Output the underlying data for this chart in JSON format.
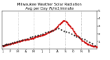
{
  "title": "Milwaukee Weather Solar Radiation\nAvg per Day W/m2/minute",
  "title_fontsize": 3.8,
  "background_color": "#ffffff",
  "plot_bg_color": "#ffffff",
  "x_min": 0,
  "x_max": 365,
  "y_min": 0,
  "y_max": 500,
  "yticks": [
    100,
    200,
    300,
    400,
    500
  ],
  "ytick_labels": [
    "1",
    "2",
    "3",
    "4",
    "5"
  ],
  "red_x": [
    1,
    3,
    5,
    8,
    10,
    12,
    15,
    17,
    20,
    22,
    25,
    28,
    30,
    33,
    36,
    38,
    41,
    44,
    47,
    50,
    53,
    56,
    59,
    62,
    65,
    68,
    71,
    74,
    77,
    80,
    83,
    86,
    89,
    92,
    95,
    98,
    101,
    104,
    107,
    110,
    113,
    116,
    119,
    122,
    125,
    128,
    131,
    134,
    137,
    140,
    143,
    146,
    149,
    152,
    155,
    158,
    161,
    164,
    167,
    170,
    173,
    176,
    179,
    182,
    185,
    188,
    191,
    194,
    197,
    200,
    203,
    206,
    209,
    212,
    215,
    218,
    221,
    224,
    227,
    230,
    233,
    236,
    239,
    242,
    245,
    248,
    251,
    254,
    257,
    260,
    263,
    266,
    269,
    272,
    275,
    278,
    281,
    284,
    287,
    290,
    293,
    296,
    299,
    302,
    305,
    308,
    311,
    314,
    317,
    320,
    323,
    326,
    329,
    332,
    335,
    338,
    341,
    344,
    347,
    350,
    353,
    356,
    359,
    362,
    365
  ],
  "red_y": [
    45,
    48,
    42,
    50,
    55,
    52,
    58,
    60,
    55,
    62,
    65,
    68,
    70,
    75,
    72,
    80,
    78,
    82,
    85,
    88,
    90,
    92,
    95,
    100,
    98,
    105,
    108,
    110,
    115,
    118,
    120,
    122,
    118,
    125,
    128,
    130,
    132,
    128,
    135,
    138,
    140,
    145,
    142,
    150,
    155,
    160,
    162,
    165,
    168,
    170,
    172,
    175,
    178,
    180,
    185,
    188,
    190,
    195,
    200,
    205,
    210,
    215,
    220,
    225,
    230,
    235,
    240,
    245,
    250,
    255,
    265,
    270,
    280,
    290,
    300,
    315,
    325,
    335,
    345,
    350,
    360,
    370,
    375,
    370,
    360,
    350,
    340,
    330,
    320,
    310,
    300,
    285,
    270,
    255,
    240,
    225,
    210,
    200,
    185,
    175,
    165,
    155,
    145,
    135,
    125,
    115,
    108,
    100,
    95,
    88,
    82,
    75,
    70,
    65,
    60,
    55,
    50,
    48,
    45,
    42,
    40,
    38,
    35,
    32,
    30
  ],
  "black_x": [
    2,
    6,
    11,
    16,
    23,
    30,
    38,
    47,
    57,
    67,
    77,
    87,
    97,
    107,
    117,
    127,
    137,
    147,
    157,
    167,
    177,
    187,
    197,
    207,
    217,
    227,
    237,
    247,
    257,
    267,
    277,
    287,
    297,
    307,
    317,
    327,
    337,
    347,
    357
  ],
  "black_y": [
    48,
    50,
    55,
    62,
    68,
    75,
    82,
    90,
    98,
    110,
    120,
    130,
    140,
    155,
    165,
    170,
    182,
    195,
    205,
    215,
    228,
    238,
    248,
    260,
    270,
    255,
    240,
    228,
    215,
    200,
    185,
    168,
    155,
    140,
    125,
    108,
    90,
    72,
    50
  ],
  "vline_x": [
    60,
    121,
    182,
    244,
    305
  ],
  "vline_color": "#999999",
  "red_color": "#cc0000",
  "black_color": "#222222",
  "dot_size_red": 2.5,
  "dot_size_black": 2.5,
  "line_width": 0.5,
  "xlabel_fontsize": 3.2,
  "ylabel_fontsize": 3.0,
  "xtick_positions": [
    1,
    32,
    60,
    91,
    121,
    152,
    182,
    213,
    244,
    274,
    305,
    335
  ],
  "xtick_labels": [
    "J",
    "F",
    "M",
    "A",
    "M",
    "J",
    "J",
    "A",
    "S",
    "O",
    "N",
    "D"
  ]
}
